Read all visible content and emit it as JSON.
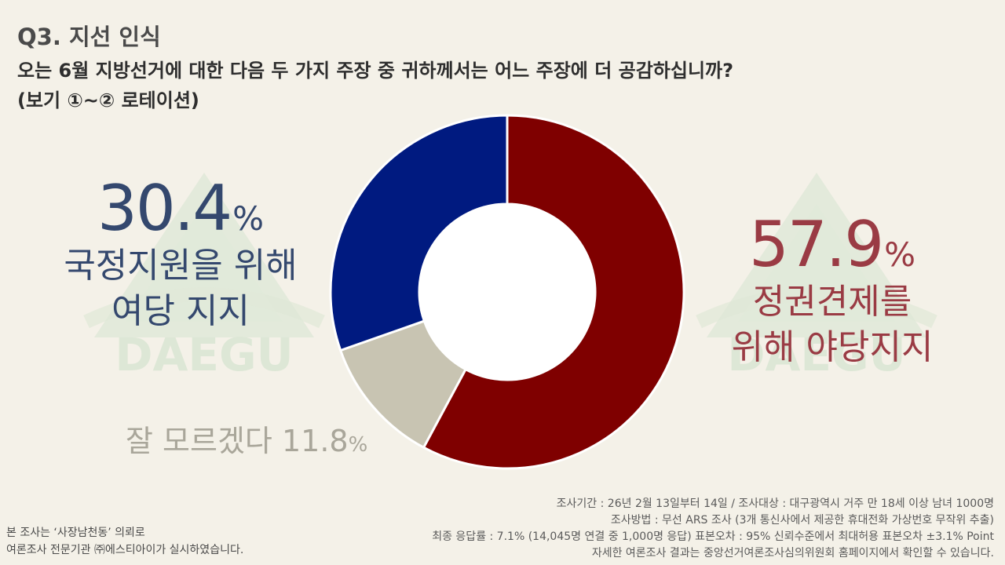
{
  "header": {
    "title": "Q3. 지선 인식",
    "question": "오는 6월 지방선거에 대한 다음 두 가지 주장 중 귀하께서는 어느 주장에 더 공감하십니까?",
    "note": "(보기 ①~② 로테이션)"
  },
  "watermark": {
    "text": "DAEGU"
  },
  "chart_data": {
    "type": "pie",
    "style": "donut",
    "slices": [
      {
        "label_line1": "정권견제를",
        "label_line2": "위해 야당지지",
        "value": 57.9,
        "color": "#7f0000"
      },
      {
        "label": "잘 모르겠다",
        "value": 11.8,
        "color": "#c8c4b2"
      },
      {
        "label_line1": "국정지원을 위해",
        "label_line2": "여당 지지",
        "value": 30.4,
        "color": "#001a80"
      }
    ],
    "unit": "%",
    "start": "12 o'clock",
    "direction": "clockwise"
  },
  "footer": {
    "left_line1": "본 조사는 ‘사장남천동’ 의뢰로",
    "left_line2": "여론조사 전문기관 ㈜에스티아이가 실시하였습니다.",
    "right_line1": "조사기간 : 26년 2월 13일부터 14일 / 조사대상 : 대구광역시 거주 만 18세 이상 남녀 1000명",
    "right_line2": "조사방법 : 무선 ARS 조사 (3개 통신사에서 제공한 휴대전화 가상번호 무작위 추출)",
    "right_line3": "최종 응답률 : 7.1% (14,045명 연결 중 1,000명 응답) 표본오차 :  95% 신뢰수준에서 최대허용 표본오차 ±3.1% Point",
    "right_line4": "자세한 여론조사 결과는 중앙선거여론조사심의위원회 홈페이지에서 확인할 수 있습니다."
  }
}
